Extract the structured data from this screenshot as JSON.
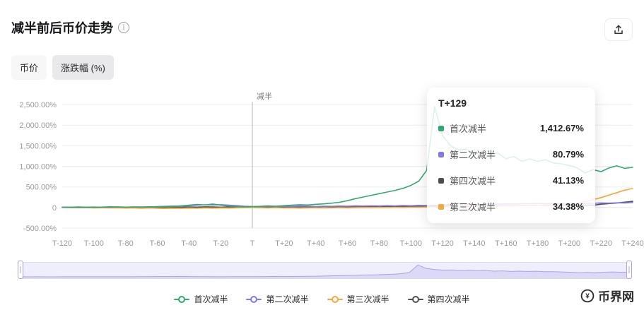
{
  "header": {
    "title": "减半前后币价走势"
  },
  "tabs": {
    "price": "币价",
    "change": "涨跌幅 (%)"
  },
  "chart_data": {
    "type": "line",
    "title": "减半前后币价走势",
    "xlabel": "",
    "ylabel": "",
    "grid": true,
    "legend_position": "bottom",
    "xlim": [
      -120,
      240
    ],
    "ylim": [
      -500,
      2500
    ],
    "x_ticks": [
      "T-120",
      "T-100",
      "T-80",
      "T-60",
      "T-40",
      "T-20",
      "T",
      "T+20",
      "T+40",
      "T+60",
      "T+80",
      "T+100",
      "T+120",
      "T+140",
      "T+160",
      "T+180",
      "T+200",
      "T+220",
      "T+240"
    ],
    "x_tick_values": [
      -120,
      -100,
      -80,
      -60,
      -40,
      -20,
      0,
      20,
      40,
      60,
      80,
      100,
      120,
      140,
      160,
      180,
      200,
      220,
      240
    ],
    "y_ticks": [
      "2,500.00%",
      "2,000.00%",
      "1,500.00%",
      "1,000.00%",
      "500.00%",
      "0",
      "-500.00%"
    ],
    "y_tick_values": [
      2500,
      2000,
      1500,
      1000,
      500,
      0,
      -500
    ],
    "halving_marker": {
      "x": 0,
      "label": "减半"
    },
    "hover": {
      "x": 129,
      "y": 34.38
    },
    "x": [
      -120,
      -115,
      -110,
      -105,
      -100,
      -95,
      -90,
      -85,
      -80,
      -75,
      -70,
      -65,
      -60,
      -55,
      -50,
      -45,
      -40,
      -35,
      -30,
      -25,
      -20,
      -15,
      -10,
      -5,
      0,
      5,
      10,
      15,
      20,
      25,
      30,
      35,
      40,
      45,
      50,
      55,
      60,
      65,
      70,
      75,
      80,
      85,
      90,
      95,
      100,
      105,
      110,
      115,
      120,
      125,
      130,
      135,
      140,
      145,
      150,
      155,
      160,
      165,
      170,
      175,
      180,
      185,
      190,
      195,
      200,
      205,
      210,
      215,
      220,
      225,
      230,
      235,
      240
    ],
    "series": [
      {
        "name": "首次减半",
        "color": "#34A873",
        "values": [
          8,
          4,
          12,
          6,
          3,
          10,
          18,
          12,
          8,
          14,
          10,
          16,
          12,
          20,
          25,
          40,
          55,
          75,
          60,
          85,
          55,
          35,
          25,
          15,
          20,
          28,
          38,
          32,
          45,
          55,
          68,
          60,
          78,
          88,
          105,
          125,
          165,
          215,
          255,
          295,
          335,
          375,
          415,
          465,
          535,
          640,
          900,
          2450,
          1750,
          1500,
          1400,
          1420,
          1300,
          1350,
          1280,
          1320,
          1180,
          1240,
          1120,
          1180,
          1120,
          1160,
          1080,
          1060,
          1020,
          960,
          840,
          920,
          870,
          960,
          1010,
          950,
          975
        ]
      },
      {
        "name": "第二次减半",
        "color": "#8178EA",
        "values": [
          2,
          5,
          3,
          8,
          5,
          10,
          8,
          12,
          10,
          15,
          12,
          18,
          22,
          28,
          35,
          30,
          45,
          55,
          65,
          60,
          70,
          55,
          45,
          30,
          25,
          20,
          28,
          22,
          30,
          26,
          34,
          30,
          25,
          32,
          28,
          35,
          30,
          38,
          34,
          40,
          36,
          44,
          40,
          48,
          44,
          52,
          48,
          56,
          60,
          70,
          82,
          76,
          84,
          78,
          86,
          80,
          88,
          84,
          92,
          88,
          96,
          90,
          98,
          94,
          102,
          98,
          106,
          102,
          110,
          106,
          114,
          110,
          120
        ]
      },
      {
        "name": "第三次减半",
        "color": "#F4A93D",
        "values": [
          0,
          -5,
          -8,
          -4,
          -10,
          -6,
          -12,
          -8,
          -15,
          -10,
          -18,
          -12,
          -20,
          -25,
          -18,
          -22,
          -15,
          -20,
          -12,
          -16,
          -10,
          -14,
          -8,
          -4,
          0,
          -6,
          -10,
          -5,
          -12,
          -8,
          -14,
          -10,
          -6,
          -12,
          -8,
          -4,
          -10,
          -6,
          0,
          -5,
          2,
          -3,
          5,
          0,
          8,
          4,
          12,
          8,
          16,
          24,
          36,
          30,
          38,
          32,
          40,
          36,
          44,
          40,
          48,
          44,
          52,
          60,
          56,
          64,
          80,
          110,
          150,
          190,
          240,
          300,
          360,
          420,
          460
        ]
      },
      {
        "name": "第四次减半",
        "color": "#4E4E4E",
        "values": [
          5,
          2,
          8,
          4,
          10,
          6,
          3,
          8,
          5,
          10,
          7,
          4,
          9,
          6,
          12,
          8,
          14,
          10,
          16,
          12,
          8,
          14,
          10,
          6,
          10,
          14,
          10,
          16,
          12,
          18,
          14,
          20,
          16,
          22,
          18,
          24,
          20,
          26,
          22,
          28,
          24,
          30,
          26,
          32,
          28,
          34,
          30,
          36,
          32,
          38,
          42,
          38,
          44,
          40,
          46,
          42,
          48,
          44,
          50,
          46,
          52,
          48,
          54,
          50,
          56,
          52,
          58,
          54,
          80,
          95,
          110,
          130,
          150
        ]
      }
    ]
  },
  "tooltip": {
    "title": "T+129",
    "rows": [
      {
        "name": "首次减半",
        "value": "1,412.67%",
        "color": "#34A873"
      },
      {
        "name": "第二次减半",
        "value": "80.79%",
        "color": "#8178EA"
      },
      {
        "name": "第四次减半",
        "value": "41.13%",
        "color": "#4E4E4E"
      },
      {
        "name": "第三次减半",
        "value": "34.38%",
        "color": "#F4A93D"
      }
    ]
  },
  "legend": {
    "items": [
      {
        "name": "首次减半",
        "color": "#34A873"
      },
      {
        "name": "第二次减半",
        "color": "#8178EA"
      },
      {
        "name": "第三次减半",
        "color": "#F4A93D"
      },
      {
        "name": "第四次减半",
        "color": "#4E4E4E"
      }
    ]
  },
  "footer": {
    "brand": "币界网"
  }
}
